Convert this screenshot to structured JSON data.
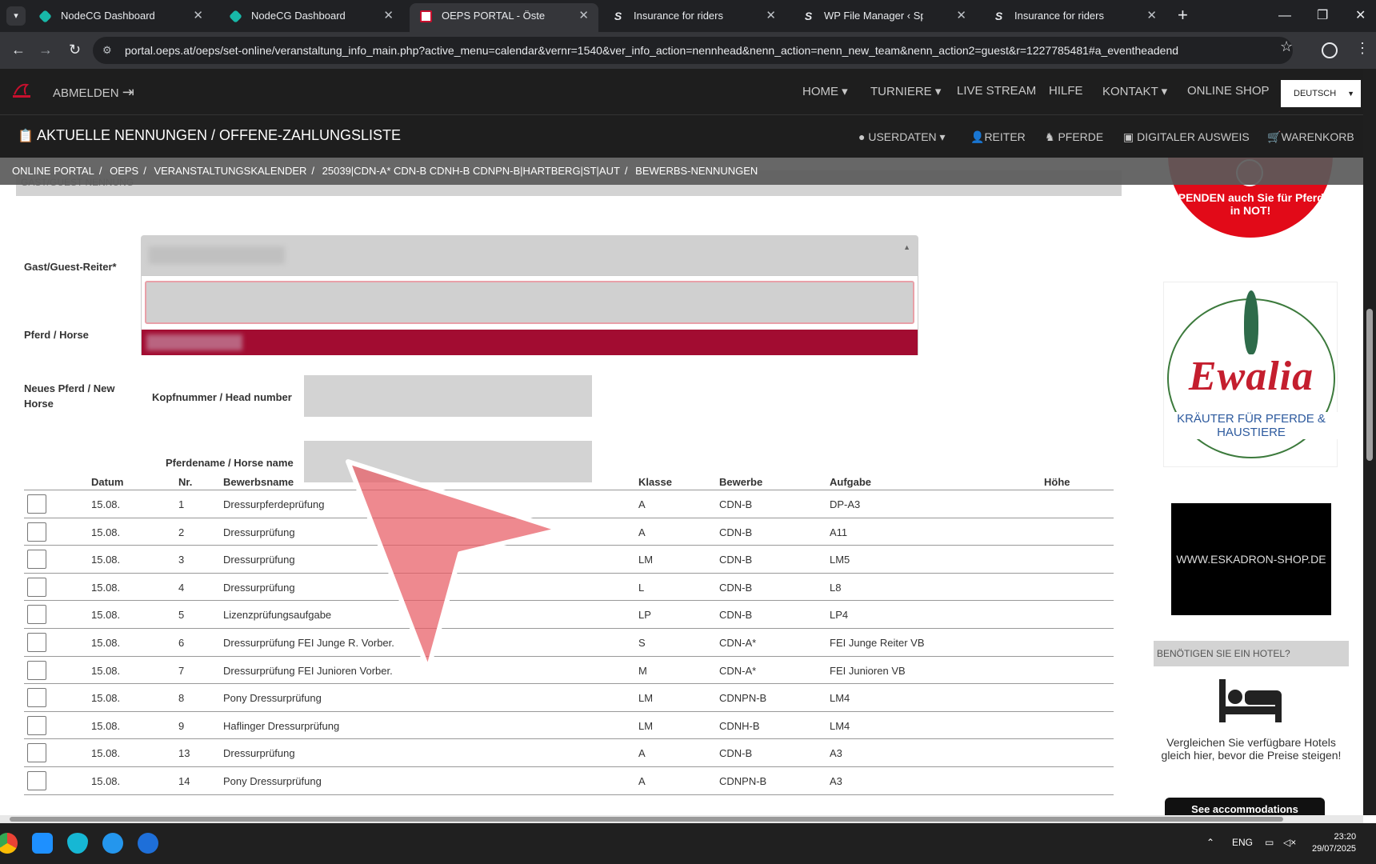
{
  "browser": {
    "tabs": [
      {
        "title": "NodeCG Dashboard"
      },
      {
        "title": "NodeCG Dashboard"
      },
      {
        "title": "OEPS PORTAL - Österreichische"
      },
      {
        "title": "Insurance for riders"
      },
      {
        "title": "WP File Manager ‹ Sportdata —"
      },
      {
        "title": "Insurance for riders"
      }
    ],
    "url": "portal.oeps.at/oeps/set-online/veranstaltung_info_main.php?active_menu=calendar&vernr=1540&ver_info_action=nennhead&nenn_action=nenn_new_team&nenn_action2=guest&r=1227785481#a_eventheadend"
  },
  "site": {
    "logout": "ABMELDEN",
    "nav": [
      "HOME",
      "TURNIERE",
      "LIVE STREAM",
      "HILFE",
      "KONTAKT",
      "ONLINE SHOP"
    ],
    "language": "DEUTSCH",
    "section_title": "AKTUELLE NENNUNGEN / OFFENE-ZAHLUNGSLISTE",
    "subnav": [
      "USERDATEN",
      "REITER",
      "PFERDE",
      "DIGITALER AUSWEIS",
      "WARENKORB"
    ],
    "breadcrumb": [
      "ONLINE PORTAL",
      "OEPS",
      "VERANSTALTUNGSKALENDER",
      "25039|CDN-A* CDN-B CDNH-B CDNPN-B|HARTBERG|ST|AUT",
      "BEWERBS-NENNUNGEN"
    ]
  },
  "form": {
    "header": "GAST/GUEST NENNUNG",
    "guest_rider_label": "Gast/Guest-Reiter*",
    "horse_label": "Pferd / Horse",
    "new_horse_label": "Neues Pferd / New Horse",
    "head_number_label": "Kopfnummer / Head number",
    "horse_name_label": "Pferdename / Horse name"
  },
  "table": {
    "headers": [
      "Datum",
      "Nr.",
      "Bewerbsname",
      "Klasse",
      "Bewerbe",
      "Aufgabe",
      "Höhe"
    ],
    "rows": [
      [
        "15.08.",
        "1",
        "Dressurpferdeprüfung",
        "A",
        "CDN-B",
        "DP-A3",
        ""
      ],
      [
        "15.08.",
        "2",
        "Dressurprüfung",
        "A",
        "CDN-B",
        "A11",
        ""
      ],
      [
        "15.08.",
        "3",
        "Dressurprüfung",
        "LM",
        "CDN-B",
        "LM5",
        ""
      ],
      [
        "15.08.",
        "4",
        "Dressurprüfung",
        "L",
        "CDN-B",
        "L8",
        ""
      ],
      [
        "15.08.",
        "5",
        "Lizenzprüfungsaufgabe",
        "LP",
        "CDN-B",
        "LP4",
        ""
      ],
      [
        "15.08.",
        "6",
        "Dressurprüfung FEI Junge R. Vorber.",
        "S",
        "CDN-A*",
        "FEI Junge Reiter VB",
        ""
      ],
      [
        "15.08.",
        "7",
        "Dressurprüfung FEI Junioren Vorber.",
        "M",
        "CDN-A*",
        "FEI Junioren VB",
        ""
      ],
      [
        "15.08.",
        "8",
        "Pony Dressurprüfung",
        "LM",
        "CDNPN-B",
        "LM4",
        ""
      ],
      [
        "15.08.",
        "9",
        "Haflinger Dressurprüfung",
        "LM",
        "CDNH-B",
        "LM4",
        ""
      ],
      [
        "15.08.",
        "13",
        "Dressurprüfung",
        "A",
        "CDN-B",
        "A3",
        ""
      ],
      [
        "15.08.",
        "14",
        "Pony Dressurprüfung",
        "A",
        "CDNPN-B",
        "A3",
        ""
      ]
    ]
  },
  "sidebar": {
    "donate_text": "SPENDEN auch Sie für Pferde in NOT!",
    "ewalia_brand": "Ewalia",
    "ewalia_sub": "KRÄUTER FÜR PFERDE & HAUSTIERE",
    "eskadron": "WWW.ESKADRON-SHOP.DE",
    "hotel_header": "BENÖTIGEN SIE EIN HOTEL?",
    "hotel_text": "Vergleichen Sie verfügbare Hotels gleich hier, bevor die Preise steigen!",
    "see_button": "See accommodations"
  },
  "taskbar": {
    "lang": "ENG",
    "time": "23:20",
    "date": "29/07/2025"
  },
  "colors": {
    "accent": "#a20c31",
    "nav_bg": "#1e1e1e",
    "cursor": "#e85c64"
  }
}
